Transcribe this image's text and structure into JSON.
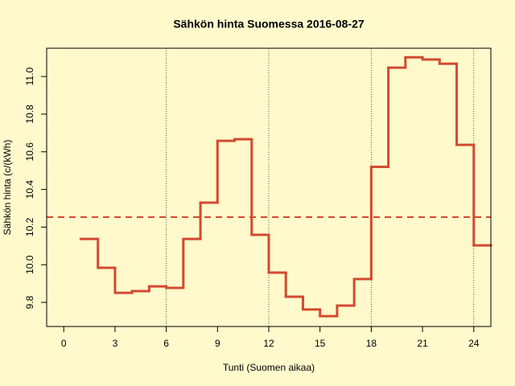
{
  "chart_data": {
    "type": "step",
    "title": "Sähkön hinta Suomessa 2016-08-27",
    "xlabel": "Tunti (Suomen aikaa)",
    "ylabel": "Sähkön hinta (c/(kWh)",
    "x": [
      1,
      2,
      3,
      4,
      5,
      6,
      7,
      8,
      9,
      10,
      11,
      12,
      13,
      14,
      15,
      16,
      17,
      18,
      19,
      20,
      21,
      22,
      23,
      24
    ],
    "series": [
      {
        "color": "#d24a30",
        "values": [
          10.137,
          9.984,
          9.851,
          9.86,
          9.885,
          9.877,
          10.137,
          10.33,
          10.658,
          10.667,
          10.159,
          9.958,
          9.83,
          9.762,
          9.727,
          9.783,
          9.924,
          10.52,
          11.047,
          11.102,
          11.09,
          11.068,
          10.637,
          10.103
        ]
      }
    ],
    "mean_line": 10.253,
    "vlines": [
      6,
      12,
      18,
      24
    ],
    "xlim": [
      -1,
      25
    ],
    "ylim": [
      9.672,
      11.15
    ],
    "xticks": [
      0,
      3,
      6,
      9,
      12,
      15,
      18,
      21,
      24
    ],
    "yticks": [
      9.8,
      {
        "value": 10.0,
        "label": "10.0"
      },
      10.2,
      10.4,
      10.6,
      10.8,
      {
        "value": 11.0,
        "label": "11.0"
      }
    ]
  }
}
